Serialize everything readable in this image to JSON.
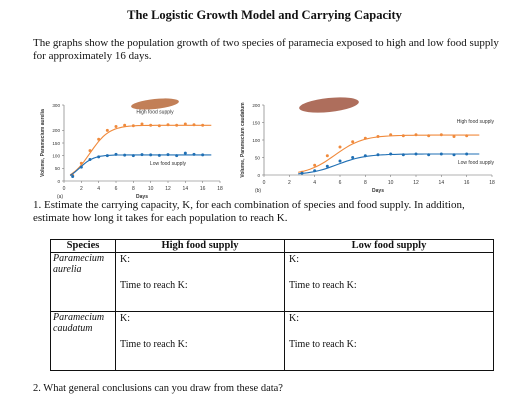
{
  "title": "The Logistic Growth Model and Carrying Capacity",
  "intro": "The graphs show the population growth of two species of paramecia exposed to high and low food supply for approximately 16 days.",
  "colors": {
    "high": "#f08a3c",
    "low": "#1f6fb4",
    "cell_a": "#b7693a",
    "cell_b": "#a0553f"
  },
  "chart_data": [
    {
      "type": "scatter",
      "panel_label": "(a)",
      "ylabel": "Volume, Paramecium aurelia",
      "xlabel": "Days",
      "xlim": [
        0,
        18
      ],
      "ylim": [
        0,
        300
      ],
      "x_ticks": [
        "0",
        "2",
        "4",
        "6",
        "8",
        "10",
        "12",
        "14",
        "16",
        "18"
      ],
      "y_ticks": [
        "0",
        "50",
        "100",
        "150",
        "200",
        "300"
      ],
      "series": [
        {
          "name": "High food supply",
          "x": [
            1,
            2,
            3,
            4,
            5,
            6,
            7,
            8,
            9,
            10,
            11,
            12,
            13,
            14,
            15,
            16
          ],
          "y": [
            22,
            70,
            120,
            165,
            200,
            215,
            220,
            218,
            225,
            220,
            218,
            222,
            220,
            225,
            222,
            220
          ]
        },
        {
          "name": "Low food supply",
          "x": [
            1,
            2,
            3,
            4,
            5,
            6,
            7,
            8,
            9,
            10,
            11,
            12,
            13,
            14,
            15,
            16
          ],
          "y": [
            18,
            55,
            85,
            95,
            100,
            105,
            102,
            100,
            104,
            103,
            101,
            104,
            100,
            110,
            105,
            103
          ]
        }
      ]
    },
    {
      "type": "scatter",
      "panel_label": "(b)",
      "ylabel": "Volume, Paramecium caudatum",
      "xlabel": "Days",
      "xlim": [
        0,
        18
      ],
      "ylim": [
        0,
        200
      ],
      "x_ticks": [
        "0",
        "2",
        "4",
        "6",
        "8",
        "10",
        "12",
        "14",
        "16",
        "18"
      ],
      "y_ticks": [
        "0",
        "50",
        "100",
        "150",
        "200"
      ],
      "series": [
        {
          "name": "High food supply",
          "x": [
            3,
            4,
            5,
            6,
            7,
            8,
            9,
            10,
            11,
            12,
            13,
            14,
            15,
            16
          ],
          "y": [
            8,
            28,
            55,
            80,
            95,
            105,
            110,
            115,
            112,
            115,
            112,
            115,
            110,
            112
          ]
        },
        {
          "name": "Low food supply",
          "x": [
            3,
            4,
            5,
            6,
            7,
            8,
            9,
            10,
            11,
            12,
            13,
            14,
            15,
            16
          ],
          "y": [
            5,
            12,
            25,
            40,
            50,
            55,
            58,
            60,
            58,
            60,
            58,
            60,
            58,
            60
          ]
        }
      ]
    }
  ],
  "question1": "1. Estimate the carrying capacity, K, for each combination of species and food supply. In addition, estimate how long it takes for each population to reach K.",
  "table": {
    "headers": [
      "Species",
      "High food supply",
      "Low food supply"
    ],
    "rows": [
      {
        "species": "Paramecium aurelia",
        "k_label": "K:",
        "time_label": "Time to reach K:"
      },
      {
        "species": "Paramecium caudatum",
        "k_label": "K:",
        "time_label": "Time to reach K:"
      }
    ]
  },
  "question2": "2. What general conclusions can you draw from these data?"
}
